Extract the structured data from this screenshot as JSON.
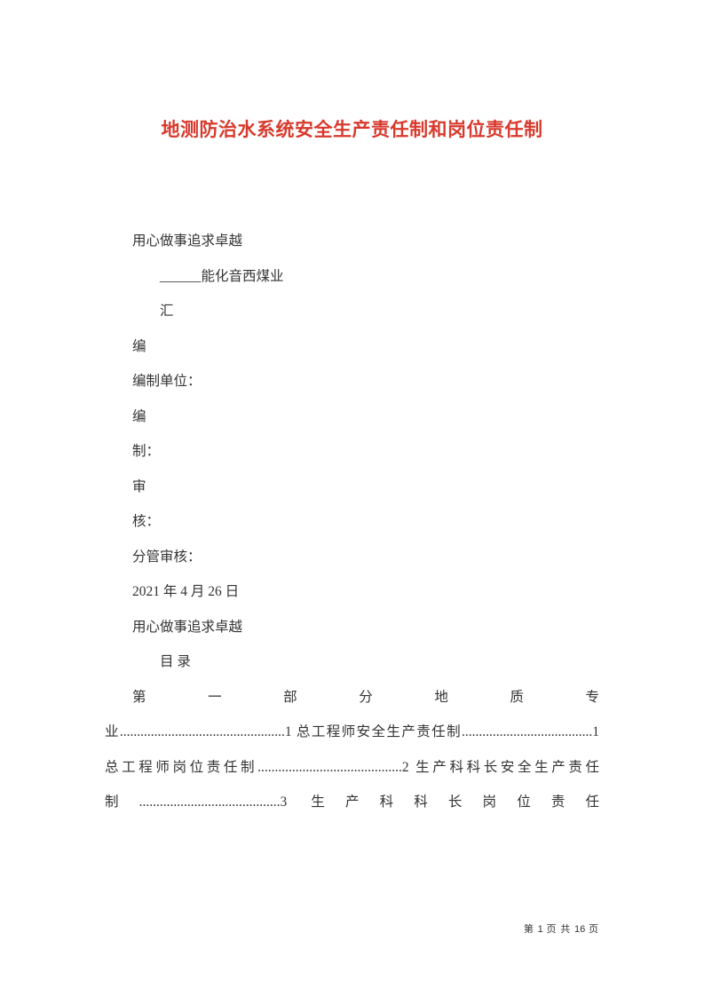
{
  "colors": {
    "title_color": "#d8392d",
    "text_color": "#333333",
    "background_color": "#ffffff"
  },
  "typography": {
    "title_fontsize": 21,
    "body_fontsize": 15.5,
    "footer_fontsize": 11,
    "line_height": 2.55,
    "title_font": "SimHei",
    "body_font": "SimSun"
  },
  "title": "地测防治水系统安全生产责任制和岗位责任制",
  "lines": {
    "l1": "用心做事追求卓越",
    "l2": "______能化音西煤业",
    "l3": "汇",
    "l4": "编",
    "l5": "编制单位：",
    "l6": "编",
    "l7": "制：",
    "l8": "审",
    "l9": "核：",
    "l10": "分管审核：",
    "l11": "2021 年 4 月 26 日",
    "l12": "用心做事追求卓越",
    "l13": "目 录"
  },
  "toc_part1": "第一部分地质专",
  "toc_rest": "业................................................1 总工程师安全生产责任制......................................1 总工程师岗位责任制..........................................2 生产科科长安全生产责任制.........................................3 生产科科长岗位责任",
  "footer": {
    "prefix": "第 ",
    "current": "1",
    "mid": " 页 共 ",
    "total": "16",
    "suffix": " 页"
  }
}
